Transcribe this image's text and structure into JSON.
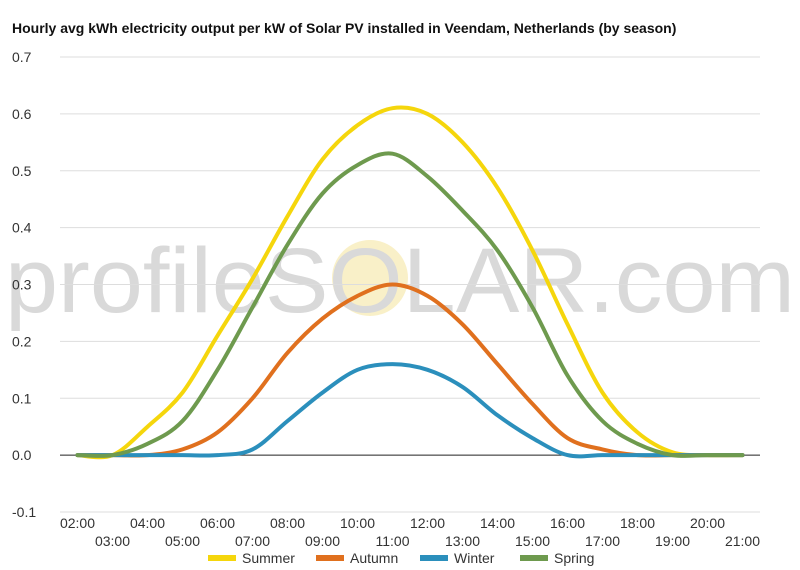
{
  "chart_data": {
    "type": "line",
    "title": "Hourly avg kWh electricity output per kW of Solar PV installed in Veendam, Netherlands (by season)",
    "watermark": "profileSOLAR.com",
    "x": [
      "02:00",
      "03:00",
      "04:00",
      "05:00",
      "06:00",
      "07:00",
      "08:00",
      "09:00",
      "10:00",
      "11:00",
      "12:00",
      "13:00",
      "14:00",
      "15:00",
      "16:00",
      "17:00",
      "18:00",
      "19:00",
      "20:00",
      "21:00"
    ],
    "ylim": [
      -0.1,
      0.7
    ],
    "yticks": [
      "0.7",
      "0.6",
      "0.5",
      "0.4",
      "0.3",
      "0.2",
      "0.1",
      "0.0",
      "-0.1"
    ],
    "grid": true,
    "legend_position": "bottom",
    "colors": {
      "summer": "#f5d60c",
      "autumn": "#e0701e",
      "winter": "#2b8fbc",
      "spring": "#6e9a4e",
      "grid": "#dddddd",
      "zero_line": "#222222"
    },
    "series": [
      {
        "name": "Summer",
        "values": [
          0,
          0,
          0.05,
          0.11,
          0.21,
          0.31,
          0.42,
          0.52,
          0.58,
          0.61,
          0.6,
          0.55,
          0.47,
          0.36,
          0.23,
          0.11,
          0.04,
          0.005,
          0,
          0
        ]
      },
      {
        "name": "Autumn",
        "values": [
          0,
          0,
          0,
          0.01,
          0.04,
          0.1,
          0.18,
          0.24,
          0.28,
          0.3,
          0.28,
          0.23,
          0.16,
          0.09,
          0.03,
          0.01,
          0,
          0,
          0,
          0
        ]
      },
      {
        "name": "Winter",
        "values": [
          0,
          0,
          0,
          0,
          0,
          0.01,
          0.06,
          0.11,
          0.15,
          0.16,
          0.15,
          0.12,
          0.07,
          0.03,
          0,
          0,
          0,
          0,
          0,
          0
        ]
      },
      {
        "name": "Spring",
        "values": [
          0,
          0,
          0.02,
          0.06,
          0.15,
          0.26,
          0.37,
          0.46,
          0.51,
          0.53,
          0.49,
          0.43,
          0.36,
          0.26,
          0.14,
          0.06,
          0.02,
          0,
          0,
          0
        ]
      }
    ]
  }
}
